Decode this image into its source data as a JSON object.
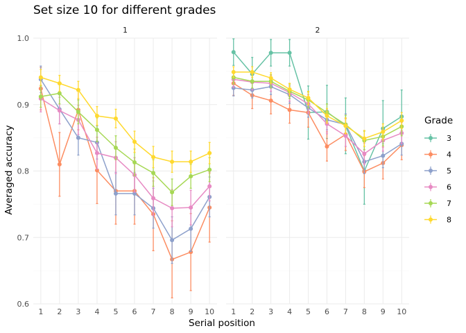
{
  "chart_data": {
    "type": "line",
    "title": "Set size 10 for different grades",
    "xlabel": "Serial position",
    "ylabel": "Averaged accuracy",
    "x": [
      1,
      2,
      3,
      4,
      5,
      6,
      7,
      8,
      9,
      10
    ],
    "xticks": [
      "1",
      "2",
      "3",
      "4",
      "5",
      "6",
      "7",
      "8",
      "9",
      "10"
    ],
    "ylim": [
      0.6,
      1.0
    ],
    "yticks": [
      "0.6",
      "0.7",
      "0.8",
      "0.9",
      "1.0"
    ],
    "grid": true,
    "legend": {
      "title": "Grade",
      "position": "right"
    },
    "panels": [
      {
        "label": "1",
        "series": [
          {
            "name": "3",
            "color": "#66c2a5",
            "values": [],
            "errors": []
          },
          {
            "name": "4",
            "color": "#fc8d62",
            "values": [
              0.924,
              0.81,
              0.892,
              0.801,
              0.77,
              0.77,
              0.735,
              0.667,
              0.678,
              0.745
            ],
            "errors": [
              0.032,
              0.048,
              0.03,
              0.05,
              0.05,
              0.05,
              0.055,
              0.058,
              0.058,
              0.052
            ]
          },
          {
            "name": "5",
            "color": "#8da0cb",
            "values": [
              0.938,
              0.893,
              0.85,
              0.843,
              0.766,
              0.766,
              0.744,
              0.696,
              0.713,
              0.761
            ],
            "errors": [
              0.02,
              0.022,
              0.026,
              0.025,
              0.032,
              0.032,
              0.03,
              0.035,
              0.034,
              0.03
            ]
          },
          {
            "name": "6",
            "color": "#e78ac3",
            "values": [
              0.909,
              0.891,
              0.877,
              0.827,
              0.82,
              0.794,
              0.759,
              0.744,
              0.745,
              0.777
            ],
            "errors": [
              0.02,
              0.02,
              0.022,
              0.024,
              0.024,
              0.026,
              0.026,
              0.028,
              0.026,
              0.022
            ]
          },
          {
            "name": "7",
            "color": "#a6d854",
            "values": [
              0.912,
              0.917,
              0.889,
              0.862,
              0.835,
              0.813,
              0.797,
              0.768,
              0.792,
              0.802
            ],
            "errors": [
              0.016,
              0.016,
              0.018,
              0.018,
              0.018,
              0.02,
              0.02,
              0.02,
              0.018,
              0.018
            ]
          },
          {
            "name": "8",
            "color": "#ffd92f",
            "values": [
              0.941,
              0.932,
              0.922,
              0.883,
              0.879,
              0.844,
              0.821,
              0.814,
              0.814,
              0.827
            ],
            "errors": [
              0.012,
              0.012,
              0.013,
              0.014,
              0.014,
              0.016,
              0.016,
              0.016,
              0.016,
              0.016
            ]
          }
        ]
      },
      {
        "label": "2",
        "series": [
          {
            "name": "3",
            "color": "#66c2a5",
            "values": [
              0.979,
              0.946,
              0.978,
              0.978,
              0.888,
              0.889,
              0.868,
              0.8,
              0.864,
              0.882
            ],
            "errors": [
              0.02,
              0.025,
              0.02,
              0.02,
              0.04,
              0.04,
              0.042,
              0.05,
              0.042,
              0.04
            ]
          },
          {
            "name": "4",
            "color": "#fc8d62",
            "values": [
              0.932,
              0.914,
              0.906,
              0.892,
              0.888,
              0.837,
              0.855,
              0.799,
              0.812,
              0.839
            ],
            "errors": [
              0.018,
              0.02,
              0.02,
              0.02,
              0.022,
              0.022,
              0.024,
              0.024,
              0.024,
              0.022
            ]
          },
          {
            "name": "5",
            "color": "#8da0cb",
            "values": [
              0.925,
              0.922,
              0.927,
              0.915,
              0.895,
              0.877,
              0.87,
              0.814,
              0.823,
              0.841
            ],
            "errors": [
              0.012,
              0.012,
              0.012,
              0.013,
              0.014,
              0.015,
              0.016,
              0.018,
              0.018,
              0.017
            ]
          },
          {
            "name": "6",
            "color": "#e78ac3",
            "values": [
              0.938,
              0.934,
              0.932,
              0.918,
              0.901,
              0.871,
              0.853,
              0.826,
              0.846,
              0.857
            ],
            "errors": [
              0.012,
              0.012,
              0.012,
              0.013,
              0.014,
              0.015,
              0.016,
              0.016,
              0.016,
              0.016
            ]
          },
          {
            "name": "7",
            "color": "#a6d854",
            "values": [
              0.941,
              0.935,
              0.935,
              0.92,
              0.907,
              0.888,
              0.87,
              0.846,
              0.852,
              0.867
            ],
            "errors": [
              0.01,
              0.01,
              0.01,
              0.011,
              0.012,
              0.013,
              0.014,
              0.014,
              0.014,
              0.014
            ]
          },
          {
            "name": "8",
            "color": "#ffd92f",
            "values": [
              0.949,
              0.949,
              0.94,
              0.923,
              0.91,
              0.883,
              0.868,
              0.849,
              0.859,
              0.876
            ],
            "errors": [
              0.008,
              0.008,
              0.008,
              0.009,
              0.01,
              0.011,
              0.012,
              0.012,
              0.012,
              0.012
            ]
          }
        ]
      }
    ]
  }
}
